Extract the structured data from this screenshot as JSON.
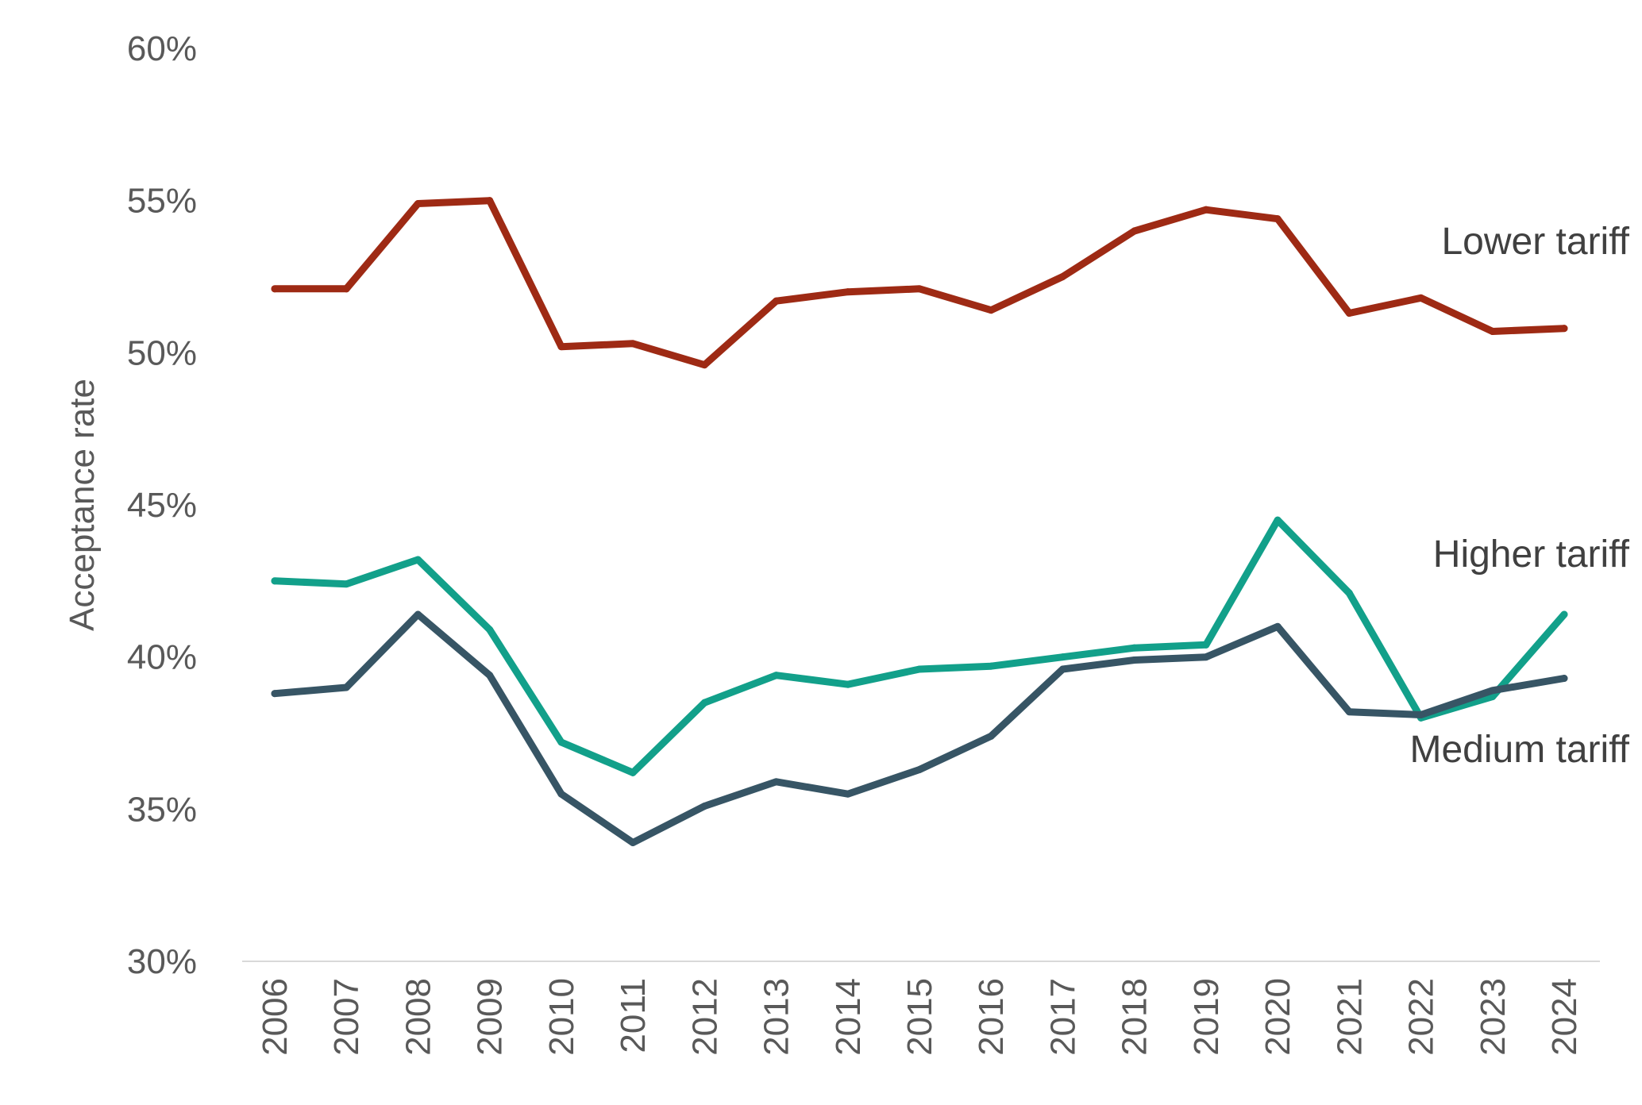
{
  "chart_data": {
    "type": "line",
    "ylabel": "Acceptance rate",
    "ylim": [
      30,
      60
    ],
    "y_ticks": [
      30,
      35,
      40,
      45,
      50,
      55,
      60
    ],
    "y_tick_labels": [
      "30%",
      "35%",
      "40%",
      "45%",
      "50%",
      "55%",
      "60%"
    ],
    "categories": [
      "2006",
      "2007",
      "2008",
      "2009",
      "2010",
      "2011",
      "2012",
      "2013",
      "2014",
      "2015",
      "2016",
      "2017",
      "2018",
      "2019",
      "2020",
      "2021",
      "2022",
      "2023",
      "2024"
    ],
    "grid": false,
    "legend": "direct labels at right end of lines",
    "series": [
      {
        "name": "Lower tariff",
        "color": "#9E2A14",
        "values": [
          52.1,
          52.1,
          54.9,
          55.0,
          50.2,
          50.3,
          49.6,
          51.7,
          52.0,
          52.1,
          51.4,
          52.5,
          54.0,
          54.7,
          54.4,
          51.3,
          51.8,
          50.7,
          50.8
        ]
      },
      {
        "name": "Higher tariff",
        "color": "#12A08A",
        "values": [
          42.5,
          42.4,
          43.2,
          40.9,
          37.2,
          36.2,
          38.5,
          39.4,
          39.1,
          39.6,
          39.7,
          40.0,
          40.3,
          40.4,
          44.5,
          42.1,
          38.0,
          38.7,
          41.4
        ]
      },
      {
        "name": "Medium tariff",
        "color": "#375565",
        "values": [
          38.8,
          39.0,
          41.4,
          39.4,
          35.5,
          33.9,
          35.1,
          35.9,
          35.5,
          36.3,
          37.4,
          39.6,
          39.9,
          40.0,
          41.0,
          38.2,
          38.1,
          38.9,
          39.3
        ]
      }
    ]
  }
}
